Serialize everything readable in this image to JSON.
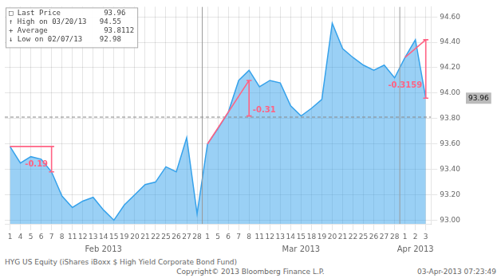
{
  "chart_data": {
    "type": "line",
    "categories": [
      "1",
      "4",
      "5",
      "6",
      "7",
      "8",
      "11",
      "12",
      "13",
      "14",
      "15",
      "19",
      "20",
      "21",
      "22",
      "25",
      "26",
      "27",
      "28",
      "1",
      "5",
      "6",
      "7",
      "8",
      "11",
      "12",
      "13",
      "14",
      "15",
      "18",
      "19",
      "20",
      "21",
      "22",
      "25",
      "26",
      "27",
      "28",
      "1",
      "2",
      "3"
    ],
    "values": [
      93.58,
      93.45,
      93.5,
      93.48,
      93.38,
      93.19,
      93.1,
      93.15,
      93.18,
      93.08,
      93.0,
      93.12,
      93.2,
      93.28,
      93.3,
      93.42,
      93.38,
      93.65,
      93.05,
      93.6,
      93.72,
      93.85,
      94.1,
      94.18,
      94.05,
      94.1,
      94.08,
      93.9,
      93.82,
      93.88,
      93.95,
      94.55,
      94.35,
      94.28,
      94.22,
      94.18,
      94.22,
      94.12,
      94.28,
      94.42,
      93.96
    ],
    "ylim": [
      92.97,
      94.68
    ],
    "yticks": [
      {
        "value": 93.0,
        "label": "93.00"
      },
      {
        "value": 93.2,
        "label": "93.20"
      },
      {
        "value": 93.4,
        "label": "93.40"
      },
      {
        "value": 93.6,
        "label": "93.60"
      },
      {
        "value": 93.8,
        "label": "93.80"
      },
      {
        "value": 94.0,
        "label": "94.00"
      },
      {
        "value": 94.2,
        "label": "94.20"
      },
      {
        "value": 94.4,
        "label": "94.40"
      },
      {
        "value": 94.6,
        "label": "94.60"
      }
    ],
    "grid": true,
    "annotations": [
      {
        "kind": "x_group",
        "text": "Feb 2013",
        "count": 19
      },
      {
        "kind": "x_group",
        "text": "Mar 2013",
        "count": 19
      },
      {
        "kind": "x_group",
        "text": "Apr 2013",
        "count": 3
      },
      {
        "kind": "hline",
        "y": 93.8112
      },
      {
        "kind": "price_tag",
        "text": "93.96",
        "y": 93.96
      },
      {
        "kind": "bracket",
        "text": "-0.19",
        "x_start": 0,
        "y_start": 93.58,
        "x": 4,
        "y_top": 93.58,
        "y_bottom": 93.38,
        "side": "left"
      },
      {
        "kind": "bracket",
        "text": "-0.31",
        "x_start": 19,
        "y_start": 93.6,
        "x": 23,
        "y_top": 94.1,
        "y_bottom": 93.82,
        "side": "right"
      },
      {
        "kind": "bracket",
        "text": "-0.3159",
        "x_start": 38,
        "y_start": 94.28,
        "x": 40,
        "y_top": 94.42,
        "y_bottom": 93.96,
        "side": "left"
      },
      {
        "kind": "info_box",
        "lines": [
          "□ Last Price          93.96",
          "↑ High on 03/20/13   94.55",
          "+ Average             93.8112",
          "↓ Low on 02/07/13    92.98"
        ]
      },
      {
        "kind": "footer",
        "left": "HYG US Equity (iShares iBoxx $ High Yield Corporate Bond Fund)",
        "center": "Copyright© 2013 Bloomberg Finance L.P.",
        "right": "03-Apr-2013 07:23:49"
      }
    ]
  }
}
